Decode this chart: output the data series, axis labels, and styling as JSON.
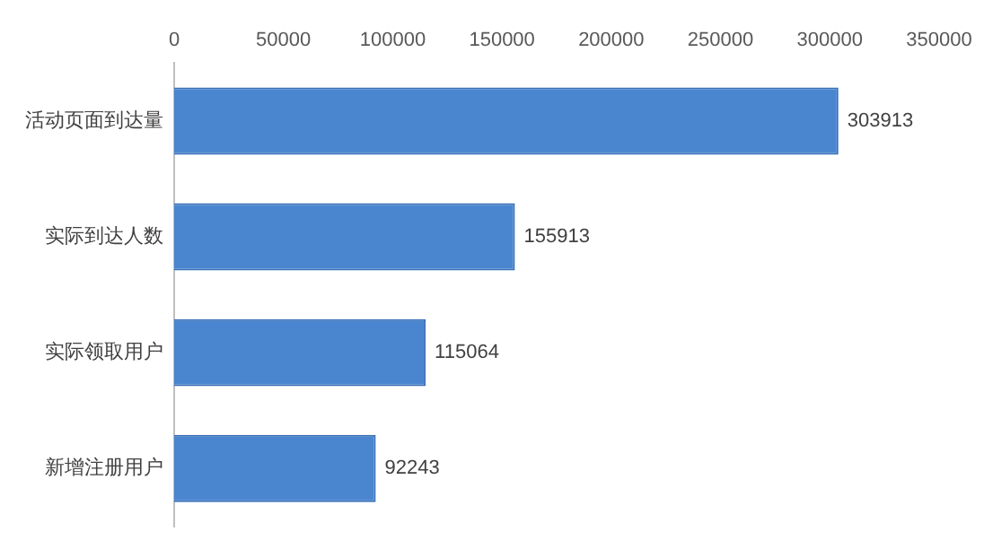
{
  "chart_data": {
    "type": "bar",
    "orientation": "horizontal",
    "categories": [
      "活动页面到达量",
      "实际到达人数",
      "实际领取用户",
      "新增注册用户"
    ],
    "values": [
      303913,
      155913,
      115064,
      92243
    ],
    "color": "#4a86d0",
    "xlim": [
      0,
      350000
    ],
    "xticks": [
      0,
      50000,
      100000,
      150000,
      200000,
      250000,
      300000,
      350000
    ],
    "grid": false,
    "data_labels": true
  }
}
